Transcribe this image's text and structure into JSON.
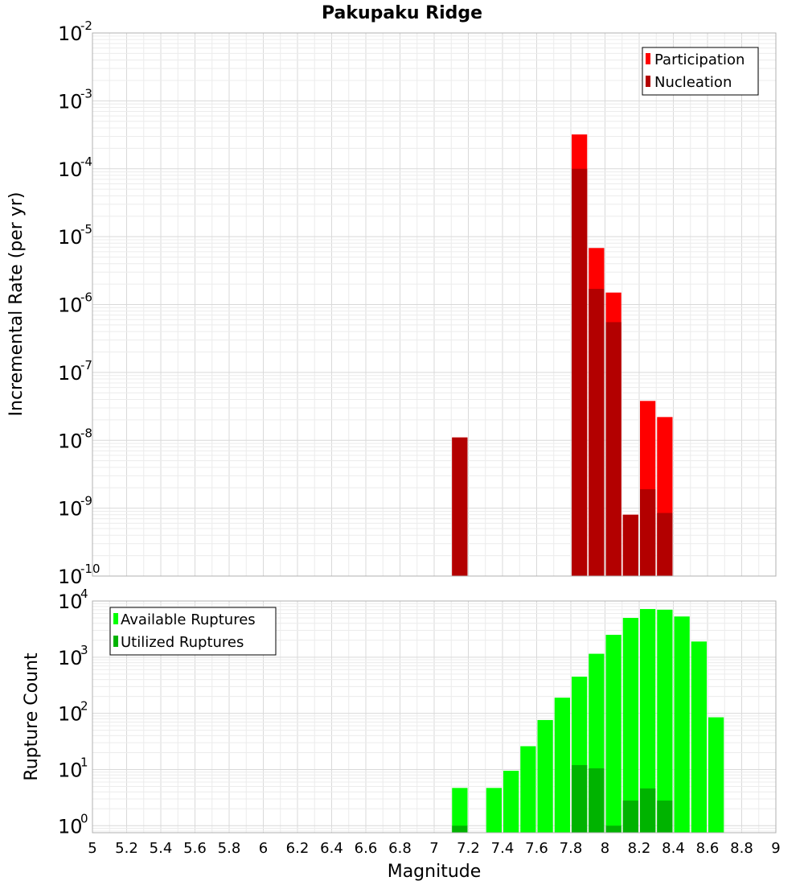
{
  "title": "Pakupaku Ridge",
  "xlabel": "Magnitude",
  "chart_data": [
    {
      "type": "bar",
      "ylabel": "Incremental Rate (per yr)",
      "yscale": "log",
      "ylim": [
        1e-10,
        0.01
      ],
      "xlim": [
        5,
        9
      ],
      "bin_width": 0.1,
      "grid": true,
      "legend_position": "top-right",
      "series": [
        {
          "name": "Participation",
          "color": "#ff0000",
          "x": [
            7.15,
            7.85,
            7.95,
            8.05,
            8.15,
            8.25,
            8.35
          ],
          "values": [
            1.1e-08,
            0.00032,
            6.8e-06,
            1.5e-06,
            8e-10,
            3.8e-08,
            2.2e-08
          ]
        },
        {
          "name": "Nucleation",
          "color": "#b30000",
          "x": [
            7.15,
            7.85,
            7.95,
            8.05,
            8.15,
            8.25,
            8.35
          ],
          "values": [
            1.1e-08,
            0.0001,
            1.7e-06,
            5.5e-07,
            8e-10,
            1.9e-09,
            8.5e-10
          ]
        }
      ],
      "ytick_exponents": [
        -10,
        -9,
        -8,
        -7,
        -6,
        -5,
        -4,
        -3,
        -2
      ]
    },
    {
      "type": "bar",
      "ylabel": "Rupture Count",
      "yscale": "log",
      "ylim": [
        0.75,
        10000
      ],
      "xlim": [
        5,
        9
      ],
      "bin_width": 0.1,
      "grid": true,
      "legend_position": "top-left",
      "series": [
        {
          "name": "Available Ruptures",
          "color": "#00ff00",
          "x": [
            7.15,
            7.35,
            7.45,
            7.55,
            7.65,
            7.75,
            7.85,
            7.95,
            8.05,
            8.15,
            8.25,
            8.35,
            8.45,
            8.55,
            8.65
          ],
          "values": [
            4.7,
            4.7,
            9.5,
            26,
            76,
            190,
            450,
            1150,
            2500,
            5000,
            7200,
            7000,
            5300,
            1900,
            85
          ]
        },
        {
          "name": "Utilized Ruptures",
          "color": "#00b300",
          "x": [
            7.15,
            7.85,
            7.95,
            8.05,
            8.15,
            8.25,
            8.35
          ],
          "values": [
            1,
            12,
            10.5,
            1,
            2.8,
            4.6,
            2.8
          ]
        }
      ],
      "ytick_exponents": [
        0,
        1,
        2,
        3,
        4
      ]
    }
  ],
  "xticks": [
    "5",
    "5.2",
    "5.4",
    "5.6",
    "5.8",
    "6",
    "6.2",
    "6.4",
    "6.6",
    "6.8",
    "7",
    "7.2",
    "7.4",
    "7.6",
    "7.8",
    "8",
    "8.2",
    "8.4",
    "8.6",
    "8.8",
    "9"
  ],
  "ytick_base": "10"
}
